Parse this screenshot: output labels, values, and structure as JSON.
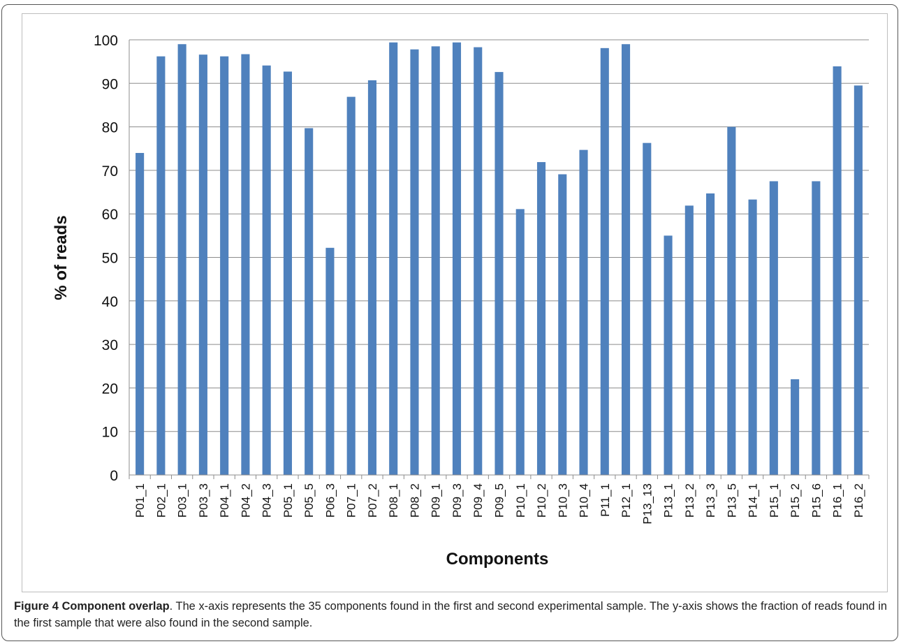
{
  "chart_data": {
    "type": "bar",
    "title": "",
    "xlabel": "Components",
    "ylabel": "% of reads",
    "ylim": [
      0,
      100
    ],
    "yticks": [
      0,
      10,
      20,
      30,
      40,
      50,
      60,
      70,
      80,
      90,
      100
    ],
    "grid": true,
    "legend": "none",
    "bar_color": "#4f81bd",
    "categories": [
      "P01_1",
      "P02_1",
      "P03_1",
      "P03_3",
      "P04_1",
      "P04_2",
      "P04_3",
      "P05_1",
      "P05_5",
      "P06_3",
      "P07_1",
      "P07_2",
      "P08_1",
      "P08_2",
      "P09_1",
      "P09_3",
      "P09_4",
      "P09_5",
      "P10_1",
      "P10_2",
      "P10_3",
      "P10_4",
      "P11_1",
      "P12_1",
      "P13_13",
      "P13_1",
      "P13_2",
      "P13_3",
      "P13_5",
      "P14_1",
      "P15_1",
      "P15_2",
      "P15_6",
      "P16_1",
      "P16_2"
    ],
    "values": [
      74,
      96.2,
      99,
      96.6,
      96.2,
      96.7,
      94.1,
      92.7,
      79.7,
      52.2,
      86.9,
      90.7,
      99.4,
      97.8,
      98.5,
      99.4,
      98.3,
      92.6,
      61.1,
      71.9,
      69.1,
      74.7,
      98.1,
      99,
      76.3,
      55,
      61.9,
      64.7,
      80,
      63.3,
      67.5,
      22,
      67.5,
      93.9,
      89.5
    ]
  },
  "caption": {
    "label": "Figure 4 Component overlap",
    "text": ". The x-axis represents the 35 components found in the first and second experimental sample. The y-axis shows the fraction of reads found in the first sample that were also found in the second sample."
  }
}
